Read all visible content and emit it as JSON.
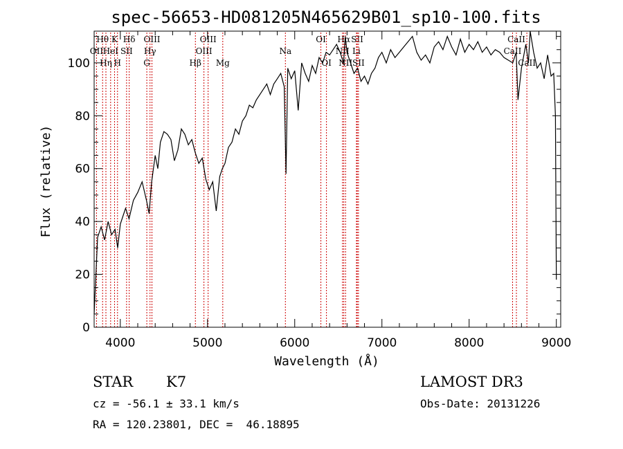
{
  "chart_data": {
    "type": "line",
    "title": "spec-56653-HD081205N465629B01_sp10-100.fits",
    "xlabel": "Wavelength (Å)",
    "ylabel": "Flux (relative)",
    "xlim": [
      3700,
      9050
    ],
    "ylim": [
      0,
      112
    ],
    "xticks": [
      4000,
      5000,
      6000,
      7000,
      8000,
      9000
    ],
    "yticks": [
      0,
      20,
      40,
      60,
      80,
      100
    ],
    "grid": false,
    "series": [
      {
        "name": "flux",
        "x": [
          3700,
          3740,
          3780,
          3820,
          3860,
          3900,
          3940,
          3970,
          4000,
          4030,
          4060,
          4100,
          4150,
          4200,
          4250,
          4300,
          4330,
          4360,
          4400,
          4430,
          4460,
          4500,
          4540,
          4580,
          4620,
          4660,
          4700,
          4740,
          4780,
          4820,
          4860,
          4900,
          4940,
          4980,
          5020,
          5060,
          5100,
          5140,
          5170,
          5200,
          5240,
          5280,
          5320,
          5360,
          5400,
          5440,
          5480,
          5520,
          5560,
          5600,
          5640,
          5680,
          5720,
          5760,
          5800,
          5840,
          5880,
          5900,
          5920,
          5960,
          6000,
          6040,
          6080,
          6120,
          6160,
          6200,
          6240,
          6280,
          6320,
          6360,
          6400,
          6440,
          6480,
          6520,
          6560,
          6580,
          6600,
          6640,
          6680,
          6720,
          6760,
          6800,
          6840,
          6880,
          6920,
          6960,
          7000,
          7050,
          7100,
          7150,
          7200,
          7250,
          7300,
          7350,
          7400,
          7450,
          7500,
          7550,
          7600,
          7650,
          7700,
          7750,
          7800,
          7850,
          7900,
          7950,
          8000,
          8050,
          8100,
          8150,
          8200,
          8250,
          8300,
          8350,
          8400,
          8450,
          8500,
          8540,
          8560,
          8600,
          8650,
          8680,
          8700,
          8740,
          8780,
          8820,
          8860,
          8900,
          8940,
          8970,
          8990,
          9000
        ],
        "y": [
          5,
          34,
          38,
          33,
          40,
          35,
          37,
          30,
          39,
          42,
          45,
          41,
          48,
          51,
          55,
          48,
          43,
          55,
          65,
          60,
          70,
          74,
          73,
          71,
          63,
          67,
          75,
          73,
          69,
          71,
          66,
          62,
          64,
          56,
          52,
          55,
          44,
          57,
          60,
          62,
          68,
          70,
          75,
          73,
          78,
          80,
          84,
          83,
          86,
          88,
          90,
          92,
          88,
          92,
          94,
          96,
          91,
          58,
          98,
          94,
          97,
          82,
          100,
          96,
          93,
          99,
          96,
          102,
          100,
          104,
          103,
          105,
          107,
          104,
          100,
          110,
          104,
          100,
          96,
          98,
          93,
          95,
          92,
          96,
          98,
          102,
          104,
          100,
          105,
          102,
          104,
          106,
          108,
          110,
          104,
          101,
          103,
          100,
          106,
          108,
          105,
          110,
          106,
          103,
          109,
          104,
          107,
          105,
          108,
          104,
          106,
          103,
          105,
          104,
          102,
          101,
          100,
          104,
          86,
          98,
          107,
          100,
          112,
          104,
          98,
          100,
          94,
          103,
          95,
          96,
          80,
          18
        ]
      }
    ],
    "spectral_lines": [
      {
        "name": "Hθ",
        "x": 3797,
        "row": 0
      },
      {
        "name": "OII",
        "x": 3727,
        "row": 1
      },
      {
        "name": "HeI",
        "x": 3889,
        "row": 1
      },
      {
        "name": "Hη",
        "x": 3835,
        "row": 2
      },
      {
        "name": "K",
        "x": 3934,
        "row": 0
      },
      {
        "name": "H",
        "x": 3968,
        "row": 2
      },
      {
        "name": "SII",
        "x": 4072,
        "row": 1
      },
      {
        "name": "Hδ",
        "x": 4102,
        "row": 0
      },
      {
        "name": "OIII",
        "x": 4363,
        "row": 0
      },
      {
        "name": "Hγ",
        "x": 4341,
        "row": 1
      },
      {
        "name": "G",
        "x": 4304,
        "row": 2
      },
      {
        "name": "Hβ",
        "x": 4861,
        "row": 2
      },
      {
        "name": "OIII",
        "x": 5007,
        "row": 0
      },
      {
        "name": "OIII",
        "x": 4959,
        "row": 1
      },
      {
        "name": "Mg",
        "x": 5175,
        "row": 2
      },
      {
        "name": "Na",
        "x": 5893,
        "row": 1
      },
      {
        "name": "OI",
        "x": 6300,
        "row": 0
      },
      {
        "name": "OI",
        "x": 6364,
        "row": 2
      },
      {
        "name": "Hα",
        "x": 6563,
        "row": 0
      },
      {
        "name": "NII",
        "x": 6548,
        "row": 1
      },
      {
        "name": "NII",
        "x": 6583,
        "row": 2
      },
      {
        "name": "SII",
        "x": 6717,
        "row": 0
      },
      {
        "name": "Li",
        "x": 6708,
        "row": 1
      },
      {
        "name": "SII",
        "x": 6731,
        "row": 2
      },
      {
        "name": "CaII",
        "x": 8542,
        "row": 0
      },
      {
        "name": "CaII",
        "x": 8498,
        "row": 1
      },
      {
        "name": "CaII",
        "x": 8662,
        "row": 2
      }
    ]
  },
  "info": {
    "class": "STAR",
    "subclass": "K7",
    "survey": "LAMOST DR3",
    "cz": "cz = -56.1 ± 33.1 km/s",
    "obsdate": "Obs-Date: 20131226",
    "radec": "RA = 120.23801, DEC =  46.18895"
  }
}
